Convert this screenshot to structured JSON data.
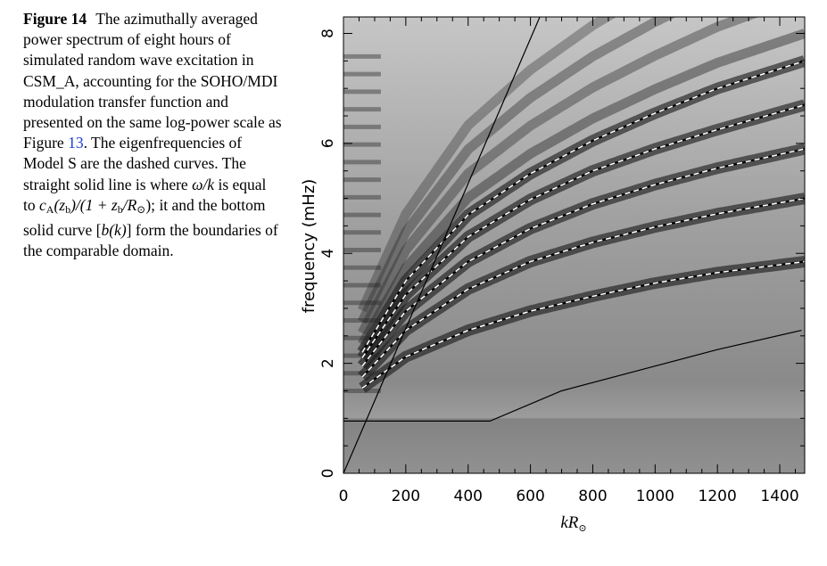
{
  "caption": {
    "label": "Figure 14",
    "part1": "The azimuthally averaged power spectrum of eight hours of simulated random wave excitation in CSM_A, accounting for the SOHO/MDI modulation transfer function and presented on the same log-power scale as Figure",
    "ref": "13",
    "part2": ". The eigenfrequencies of Model S are the dashed curves. The straight solid line is where",
    "omega_k": "ω/k",
    "part3": "is equal to",
    "ca": "c",
    "ca_sub": "A",
    "zb_open": "(z",
    "zb_sub": "b",
    "formula_mid": ")/(1 + z",
    "zb_sub2": "b",
    "formula_r": "/R",
    "r_sub": "⊙",
    "formula_end": ");",
    "part4": "it and the bottom solid curve [",
    "bk": "b(k)",
    "part5": "] form the boundaries of the comparable domain."
  },
  "chart_data": {
    "type": "heatmap",
    "xlabel": "kR",
    "xlabel_sub": "⊙",
    "ylabel": "frequency (mHz)",
    "xlim": [
      0,
      1480
    ],
    "ylim": [
      0,
      8.3
    ],
    "xticks": [
      0,
      200,
      400,
      600,
      800,
      1000,
      1200,
      1400
    ],
    "xtick_labels": [
      "0",
      "200",
      "400",
      "600",
      "800",
      "1000",
      "1200",
      "1400"
    ],
    "yticks": [
      0,
      2,
      4,
      6,
      8
    ],
    "ytick_labels": [
      "0",
      "2",
      "4",
      "6",
      "8"
    ],
    "colormap": "grayscale log-power",
    "dashed_curves": [
      {
        "x": [
          60,
          200,
          400,
          600,
          800,
          1000,
          1200,
          1480
        ],
        "y": [
          1.55,
          2.12,
          2.6,
          2.95,
          3.22,
          3.46,
          3.65,
          3.85
        ]
      },
      {
        "x": [
          60,
          200,
          400,
          600,
          800,
          1000,
          1200,
          1480
        ],
        "y": [
          1.75,
          2.6,
          3.35,
          3.85,
          4.2,
          4.48,
          4.72,
          5.0
        ]
      },
      {
        "x": [
          60,
          200,
          400,
          600,
          800,
          1000,
          1200,
          1480
        ],
        "y": [
          1.95,
          2.95,
          3.85,
          4.45,
          4.9,
          5.25,
          5.55,
          5.9
        ]
      },
      {
        "x": [
          60,
          200,
          400,
          600,
          800,
          1000,
          1200,
          1480
        ],
        "y": [
          2.1,
          3.25,
          4.3,
          4.98,
          5.5,
          5.9,
          6.25,
          6.7
        ]
      },
      {
        "x": [
          60,
          200,
          400,
          600,
          800,
          1000,
          1200,
          1480
        ],
        "y": [
          2.2,
          3.5,
          4.7,
          5.45,
          6.05,
          6.55,
          7.0,
          7.5
        ]
      }
    ],
    "straight_line": {
      "x": [
        0,
        630
      ],
      "y": [
        0,
        8.3
      ]
    },
    "boundary_curve": {
      "x": [
        0,
        470,
        700,
        1000,
        1200,
        1470
      ],
      "y": [
        0.95,
        0.95,
        1.5,
        1.95,
        2.25,
        2.6
      ]
    }
  }
}
